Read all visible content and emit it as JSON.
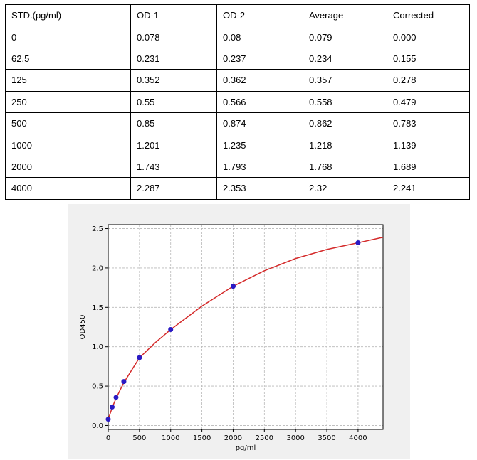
{
  "table": {
    "headers": [
      "STD.(pg/ml)",
      "OD-1",
      "OD-2",
      "Average",
      "Corrected"
    ],
    "rows": [
      [
        "0",
        "0.078",
        "0.08",
        "0.079",
        "0.000"
      ],
      [
        "62.5",
        "0.231",
        "0.237",
        "0.234",
        "0.155"
      ],
      [
        "125",
        "0.352",
        "0.362",
        "0.357",
        "0.278"
      ],
      [
        "250",
        "0.55",
        "0.566",
        "0.558",
        "0.479"
      ],
      [
        "500",
        "0.85",
        "0.874",
        "0.862",
        "0.783"
      ],
      [
        "1000",
        "1.201",
        "1.235",
        "1.218",
        "1.139"
      ],
      [
        "2000",
        "1.743",
        "1.793",
        "1.768",
        "1.689"
      ],
      [
        "4000",
        "2.287",
        "2.353",
        "2.32",
        "2.241"
      ]
    ]
  },
  "chart_data": {
    "type": "scatter",
    "xlabel": "pg/ml",
    "ylabel": "OD450",
    "xlim": [
      0,
      4400
    ],
    "ylim": [
      -0.05,
      2.55
    ],
    "xticks": [
      0,
      500,
      1000,
      1500,
      2000,
      2500,
      3000,
      3500,
      4000
    ],
    "yticks": [
      0.0,
      0.5,
      1.0,
      1.5,
      2.0,
      2.5
    ],
    "xtick_labels": [
      "0",
      "500",
      "1000",
      "1500",
      "2000",
      "2500",
      "3000",
      "3500",
      "4000"
    ],
    "ytick_labels": [
      "0.0",
      "0.5",
      "1.0",
      "1.5",
      "2.0",
      "2.5"
    ],
    "grid": true,
    "series": [
      {
        "kind": "points",
        "color": "#2a1ac4",
        "x": [
          0,
          62.5,
          125,
          250,
          500,
          1000,
          2000,
          4000
        ],
        "y": [
          0.079,
          0.234,
          0.357,
          0.558,
          0.862,
          1.218,
          1.768,
          2.32
        ]
      },
      {
        "kind": "fit-line",
        "color": "#d42a2a",
        "x": [
          0,
          62.5,
          125,
          250,
          500,
          750,
          1000,
          1500,
          2000,
          2500,
          3000,
          3500,
          4000,
          4400
        ],
        "y": [
          0.079,
          0.225,
          0.345,
          0.545,
          0.86,
          1.05,
          1.218,
          1.515,
          1.768,
          1.965,
          2.12,
          2.235,
          2.32,
          2.39
        ]
      }
    ]
  }
}
